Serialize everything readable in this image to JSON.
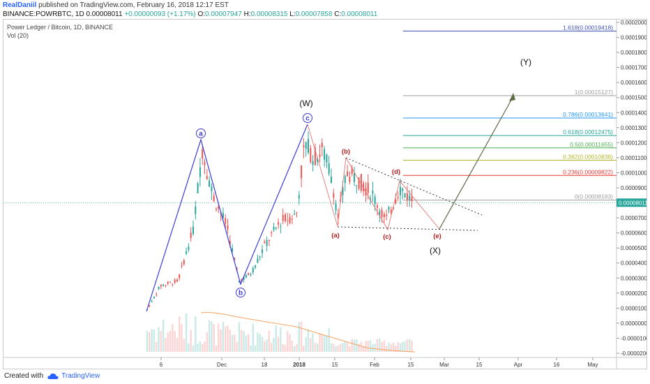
{
  "header": {
    "author": "RealDaniil",
    "published": "published on TradingView.com, February 16, 2018 12:17 EST",
    "symbol": "BINANCE:POWRBTC, 1D",
    "price": "0.00008011",
    "change": "+0.00000093 (+1.17%)",
    "ohlc": {
      "o_label": "O:",
      "o": "0.00007947",
      "h_label": "H:",
      "h": "0.00008315",
      "l_label": "L:",
      "l": "0.00007858",
      "c_label": "C:",
      "c": "0.00008011"
    }
  },
  "legend": {
    "title": "Power Ledger / Bitcoin, 1D, BINANCE",
    "volume": "Vol (20)"
  },
  "footer": {
    "created_with": "Created with",
    "brand": "TradingView"
  },
  "colors": {
    "up": "#26a69a",
    "down": "#ef5350",
    "wave_blue": "#3a3ad6",
    "wave_red": "#e57373",
    "wave_label_red": "#b71c1c",
    "arrow": "#5b6b43",
    "price_line": "#26a69a",
    "volume_ma": "#f4a460"
  },
  "chart_data": {
    "type": "candlestick",
    "y_axis": {
      "ticks": [
        "0.00020000",
        "0.00019000",
        "0.00018000",
        "0.00017000",
        "0.00016000",
        "0.00015000",
        "0.00014000",
        "0.00013000",
        "0.00012000",
        "0.00011000",
        "0.00010000",
        "0.00009000",
        "0.00008000",
        "0.00007000",
        "0.00006000",
        "0.00005000",
        "0.00004000",
        "0.00003000",
        "0.00002000",
        "0.00001000",
        "0.00000000",
        "-0.00001000",
        "-0.00002000"
      ],
      "range": [
        -2e-05,
        0.0002
      ]
    },
    "x_axis": {
      "ticks": [
        "6",
        "Dec",
        "18",
        "2018",
        "15",
        "Feb",
        "15",
        "Mar",
        "15",
        "Apr",
        "16",
        "May"
      ]
    },
    "last_price_label": "0.00008011",
    "last_price": 8.011e-05,
    "fib_levels": [
      {
        "label": "1.618(0.00019418)",
        "value": 0.00019418,
        "color": "#3f51b5"
      },
      {
        "label": "1(0.00015127)",
        "value": 0.00015127,
        "color": "#9e9e9e"
      },
      {
        "label": "0.786(0.00013641)",
        "value": 0.00013641,
        "color": "#2196f3"
      },
      {
        "label": "0.618(0.00012475)",
        "value": 0.00012475,
        "color": "#26a69a"
      },
      {
        "label": "0.5(0.00011655)",
        "value": 0.00011655,
        "color": "#4caf50"
      },
      {
        "label": "0.382(0.00010836)",
        "value": 0.00010836,
        "color": "#b5b52a"
      },
      {
        "label": "0.236(0.00009822)",
        "value": 9.822e-05,
        "color": "#e53935"
      },
      {
        "label": "0(0.00008183)",
        "value": 8.183e-05,
        "color": "#9e9e9e"
      }
    ],
    "wave_labels_major": [
      "(W)",
      "(X)",
      "(Y)"
    ],
    "wave_labels_blue": [
      "a",
      "b",
      "c"
    ],
    "wave_labels_red": [
      "(a)",
      "(b)",
      "(c)",
      "(d)",
      "(e)"
    ]
  }
}
